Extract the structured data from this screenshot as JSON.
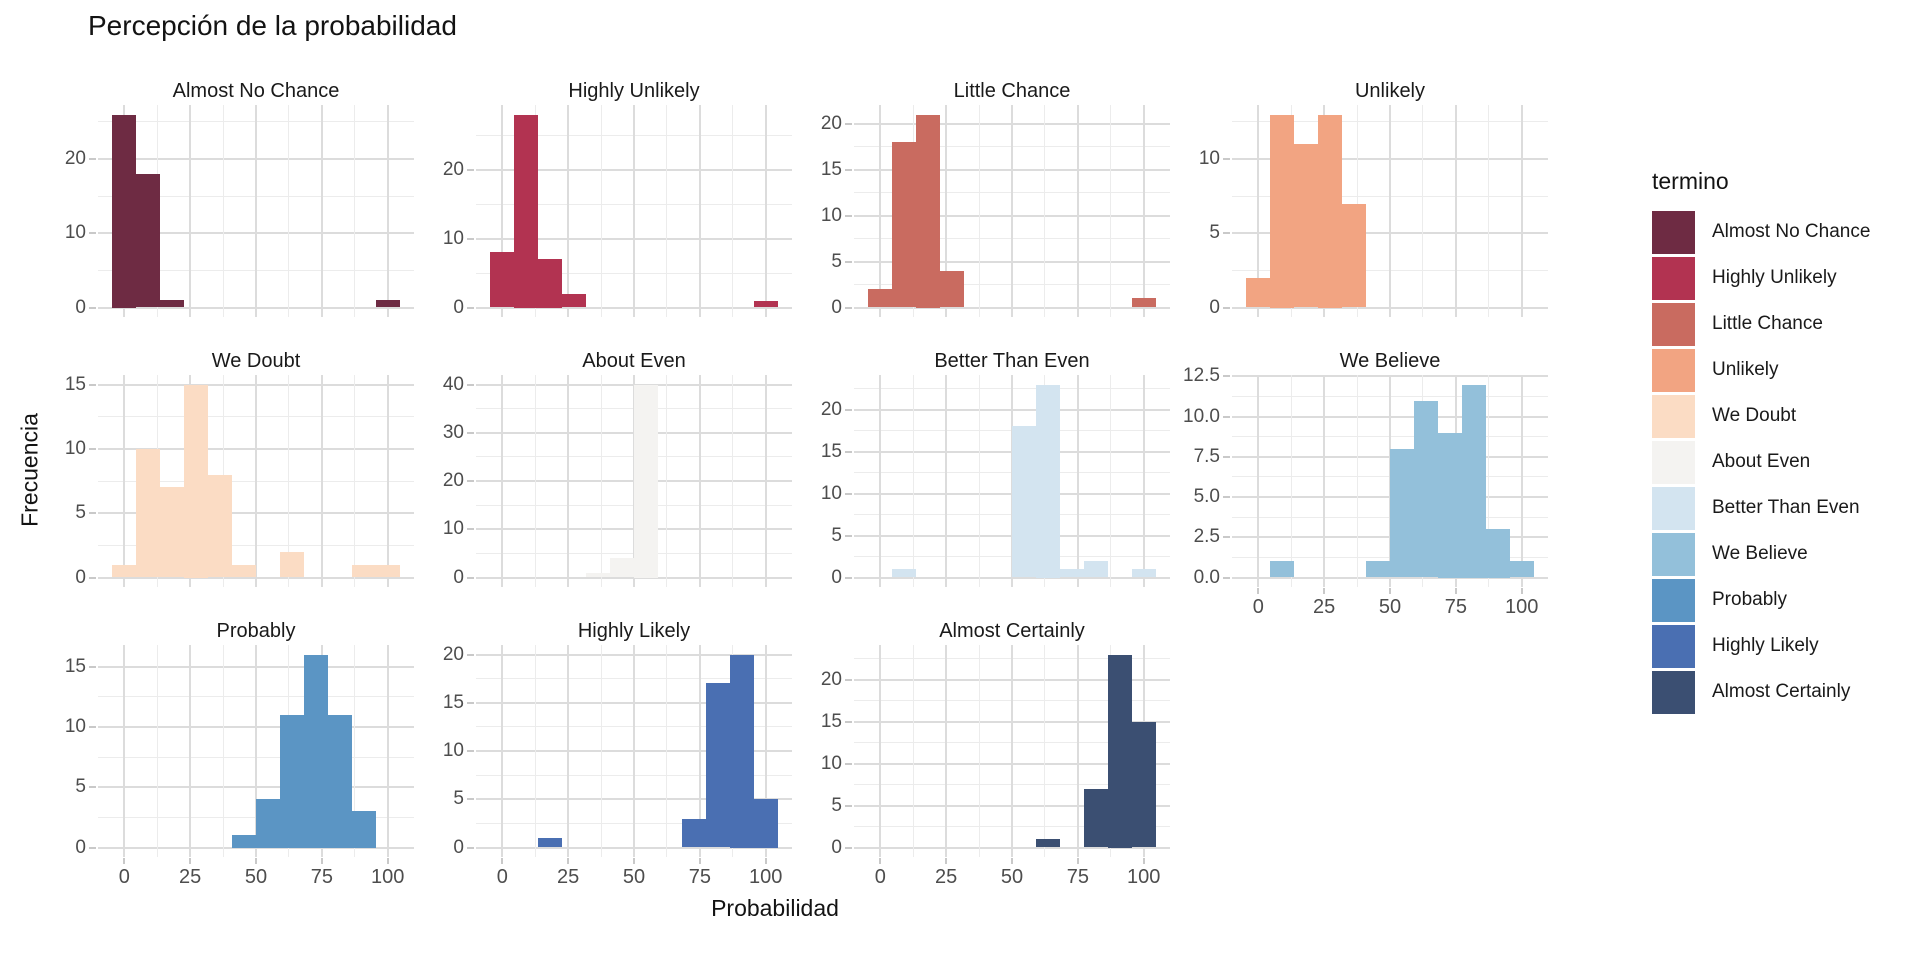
{
  "chart_data": {
    "type": "bar",
    "subtype": "faceted-histogram",
    "title": "Percepción de la probabilidad",
    "xlabel": "Probabilidad",
    "ylabel": "Frecuencia",
    "legend_title": "termino",
    "x_domain": [
      -10,
      110
    ],
    "x_ticks": [
      0,
      25,
      50,
      75,
      100
    ],
    "x_minor_ticks": [
      12.5,
      37.5,
      62.5,
      87.5
    ],
    "bin_width": 9.09,
    "grid": "on",
    "legend_position": "right",
    "facets": [
      {
        "term": "Almost No Chance",
        "color": "#6e2b43",
        "y_ticks": [
          0,
          10,
          20
        ],
        "y_max": 26,
        "bins": [
          {
            "x": 0,
            "n": 26
          },
          {
            "x": 9.1,
            "n": 18
          },
          {
            "x": 18.2,
            "n": 1
          },
          {
            "x": 100,
            "n": 1
          }
        ]
      },
      {
        "term": "Highly Unlikely",
        "color": "#b23351",
        "y_ticks": [
          0,
          10,
          20
        ],
        "y_max": 28,
        "bins": [
          {
            "x": 0,
            "n": 8
          },
          {
            "x": 9.1,
            "n": 28
          },
          {
            "x": 18.2,
            "n": 7
          },
          {
            "x": 27.3,
            "n": 2
          },
          {
            "x": 100,
            "n": 1
          }
        ]
      },
      {
        "term": "Little Chance",
        "color": "#c96b60",
        "y_ticks": [
          0,
          5,
          10,
          15,
          20
        ],
        "y_max": 21,
        "bins": [
          {
            "x": 0,
            "n": 2
          },
          {
            "x": 9.1,
            "n": 18
          },
          {
            "x": 18.2,
            "n": 21
          },
          {
            "x": 27.3,
            "n": 4
          },
          {
            "x": 100,
            "n": 1
          }
        ]
      },
      {
        "term": "Unlikely",
        "color": "#f2a482",
        "y_ticks": [
          0,
          5,
          10
        ],
        "y_max": 13,
        "bins": [
          {
            "x": 0,
            "n": 2
          },
          {
            "x": 9.1,
            "n": 13
          },
          {
            "x": 18.2,
            "n": 11
          },
          {
            "x": 27.3,
            "n": 13
          },
          {
            "x": 36.4,
            "n": 7
          }
        ]
      },
      {
        "term": "We Doubt",
        "color": "#fbdcc4",
        "y_ticks": [
          0,
          5,
          10,
          15
        ],
        "y_max": 15,
        "bins": [
          {
            "x": 0,
            "n": 1
          },
          {
            "x": 9.1,
            "n": 10
          },
          {
            "x": 18.2,
            "n": 7
          },
          {
            "x": 27.3,
            "n": 15
          },
          {
            "x": 36.4,
            "n": 8
          },
          {
            "x": 45.5,
            "n": 1
          },
          {
            "x": 63.6,
            "n": 2
          },
          {
            "x": 90.9,
            "n": 1
          },
          {
            "x": 100,
            "n": 1
          }
        ]
      },
      {
        "term": "About Even",
        "color": "#f4f3f1",
        "y_ticks": [
          0,
          10,
          20,
          30,
          40
        ],
        "y_max": 40,
        "bins": [
          {
            "x": 36.4,
            "n": 1
          },
          {
            "x": 45.5,
            "n": 4
          },
          {
            "x": 54.5,
            "n": 40
          }
        ]
      },
      {
        "term": "Better Than Even",
        "color": "#d3e4f0",
        "y_ticks": [
          0,
          5,
          10,
          15,
          20
        ],
        "y_max": 23,
        "bins": [
          {
            "x": 9.1,
            "n": 1
          },
          {
            "x": 54.5,
            "n": 18
          },
          {
            "x": 63.6,
            "n": 23
          },
          {
            "x": 72.7,
            "n": 1
          },
          {
            "x": 81.8,
            "n": 2
          },
          {
            "x": 100,
            "n": 1
          }
        ]
      },
      {
        "term": "We Believe",
        "color": "#93c0da",
        "y_ticks": [
          0,
          2.5,
          5,
          7.5,
          10,
          12.5
        ],
        "y_tick_labels": [
          "0.0",
          "2.5",
          "5.0",
          "7.5",
          "10.0",
          "12.5"
        ],
        "y_max": 12,
        "show_x_axis": true,
        "bins": [
          {
            "x": 9.1,
            "n": 1
          },
          {
            "x": 45.5,
            "n": 1
          },
          {
            "x": 54.5,
            "n": 8
          },
          {
            "x": 63.6,
            "n": 11
          },
          {
            "x": 72.7,
            "n": 9
          },
          {
            "x": 81.8,
            "n": 12
          },
          {
            "x": 90.9,
            "n": 3
          },
          {
            "x": 100,
            "n": 1
          }
        ]
      },
      {
        "term": "Probably",
        "color": "#5b95c4",
        "y_ticks": [
          0,
          5,
          10,
          15
        ],
        "y_max": 16,
        "show_x_axis": true,
        "bins": [
          {
            "x": 45.5,
            "n": 1
          },
          {
            "x": 54.5,
            "n": 4
          },
          {
            "x": 63.6,
            "n": 11
          },
          {
            "x": 72.7,
            "n": 16
          },
          {
            "x": 81.8,
            "n": 11
          },
          {
            "x": 90.9,
            "n": 3
          }
        ]
      },
      {
        "term": "Highly Likely",
        "color": "#4a6fb2",
        "y_ticks": [
          0,
          5,
          10,
          15,
          20
        ],
        "y_max": 20,
        "show_x_axis": true,
        "bins": [
          {
            "x": 18.2,
            "n": 1
          },
          {
            "x": 72.7,
            "n": 3
          },
          {
            "x": 81.8,
            "n": 17
          },
          {
            "x": 90.9,
            "n": 20
          },
          {
            "x": 100,
            "n": 5
          }
        ]
      },
      {
        "term": "Almost Certainly",
        "color": "#3b4f72",
        "y_ticks": [
          0,
          5,
          10,
          15,
          20
        ],
        "y_max": 23,
        "show_x_axis": true,
        "bins": [
          {
            "x": 63.6,
            "n": 1
          },
          {
            "x": 81.8,
            "n": 7
          },
          {
            "x": 90.9,
            "n": 23
          },
          {
            "x": 100,
            "n": 15
          }
        ]
      }
    ]
  }
}
